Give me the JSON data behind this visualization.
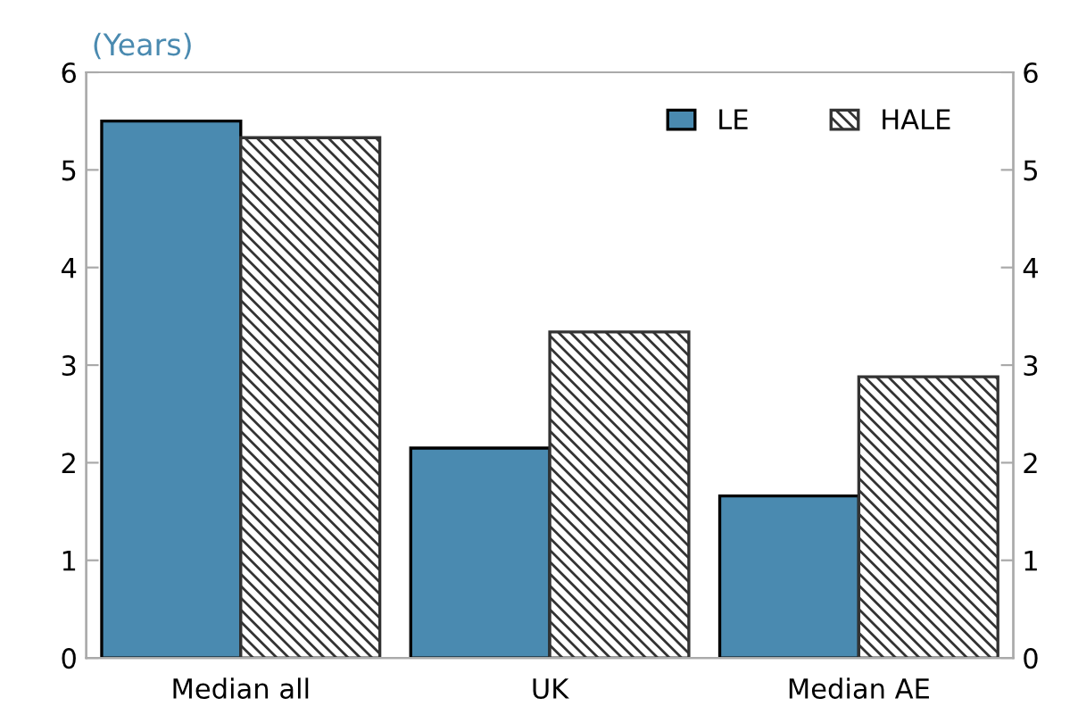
{
  "chart_data": {
    "type": "bar",
    "ylabel": "(Years)",
    "categories": [
      "Median all",
      "UK",
      "Median AE"
    ],
    "series": [
      {
        "name": "LE",
        "color": "#4a8ab0",
        "values": [
          5.5,
          2.15,
          1.66
        ]
      },
      {
        "name": "HALE",
        "color": "#333333",
        "values": [
          5.33,
          3.34,
          2.88
        ]
      }
    ],
    "ylim": [
      0,
      6
    ],
    "yticks": [
      0,
      1,
      2,
      3,
      4,
      5,
      6
    ],
    "y2lim": [
      0,
      6
    ],
    "y2ticks": [
      0,
      1,
      2,
      3,
      4,
      5,
      6
    ],
    "grid": false,
    "legend": "top right"
  }
}
